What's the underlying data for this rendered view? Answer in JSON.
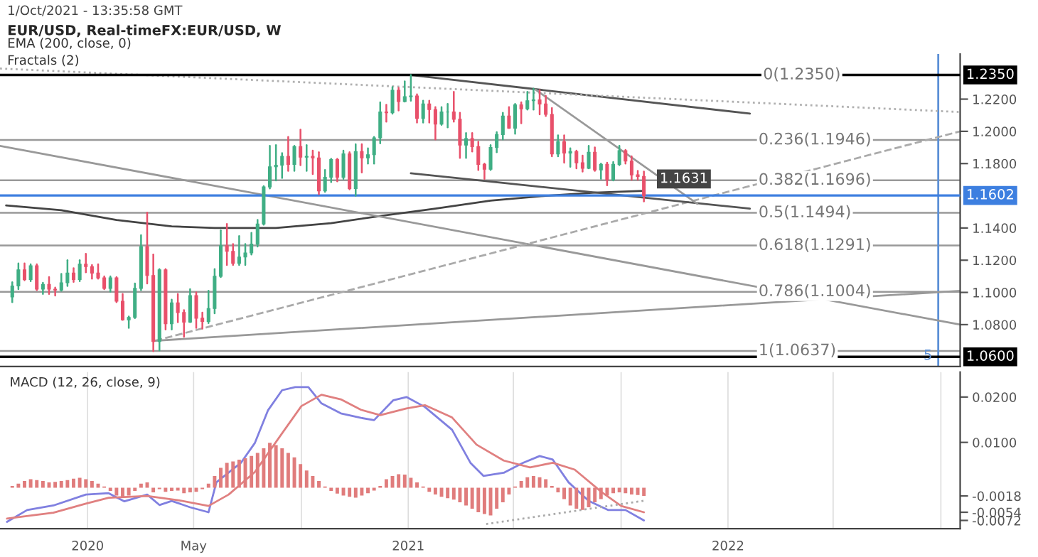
{
  "chart_data": [
    {
      "type": "candlestick",
      "title": "EUR/USD, Real-timeFX:EUR/USD, W",
      "annotations": [
        "1/Oct/2021 - 13:35:58 GMT",
        "EMA (200, close, 0)",
        "Fractals (2)",
        {
          "text": "0(1.2350)",
          "x": "2022-02-10",
          "y": 1.235
        }
      ],
      "x": [
        "2019-10-07",
        "2019-10-14",
        "2019-10-21",
        "2019-10-28",
        "2019-11-04",
        "2019-11-11",
        "2019-11-18",
        "2019-11-25",
        "2019-12-02",
        "2019-12-09",
        "2019-12-16",
        "2019-12-23",
        "2019-12-30",
        "2020-01-06",
        "2020-01-13",
        "2020-01-20",
        "2020-01-27",
        "2020-02-03",
        "2020-02-10",
        "2020-02-17",
        "2020-02-24",
        "2020-03-02",
        "2020-03-09",
        "2020-03-16",
        "2020-03-23",
        "2020-03-30",
        "2020-04-06",
        "2020-04-13",
        "2020-04-20",
        "2020-04-27",
        "2020-05-04",
        "2020-05-11",
        "2020-05-18",
        "2020-05-25",
        "2020-06-01",
        "2020-06-08",
        "2020-06-15",
        "2020-06-22",
        "2020-06-29",
        "2020-07-06",
        "2020-07-13",
        "2020-07-20",
        "2020-07-27",
        "2020-08-03",
        "2020-08-10",
        "2020-08-17",
        "2020-08-24",
        "2020-08-31",
        "2020-09-07",
        "2020-09-14",
        "2020-09-21",
        "2020-09-28",
        "2020-10-05",
        "2020-10-12",
        "2020-10-19",
        "2020-10-26",
        "2020-11-02",
        "2020-11-09",
        "2020-11-16",
        "2020-11-23",
        "2020-11-30",
        "2020-12-07",
        "2020-12-14",
        "2020-12-21",
        "2020-12-28",
        "2021-01-04",
        "2021-01-11",
        "2021-01-18",
        "2021-01-25",
        "2021-02-01",
        "2021-02-08",
        "2021-02-15",
        "2021-02-22",
        "2021-03-01",
        "2021-03-08",
        "2021-03-15",
        "2021-03-22",
        "2021-03-29",
        "2021-04-05",
        "2021-04-12",
        "2021-04-19",
        "2021-04-26",
        "2021-05-03",
        "2021-05-10",
        "2021-05-17",
        "2021-05-24",
        "2021-05-31",
        "2021-06-07",
        "2021-06-14",
        "2021-06-21",
        "2021-06-28",
        "2021-07-05",
        "2021-07-12",
        "2021-07-19",
        "2021-07-26",
        "2021-08-02",
        "2021-08-09",
        "2021-08-16",
        "2021-08-23",
        "2021-08-30",
        "2021-09-06",
        "2021-09-13",
        "2021-09-20",
        "2021-09-27"
      ],
      "ohlc": [
        [
          1.0972,
          1.1063,
          1.094,
          1.104
        ],
        [
          1.104,
          1.118,
          1.102,
          1.114
        ],
        [
          1.114,
          1.118,
          1.1075,
          1.108
        ],
        [
          1.108,
          1.1175,
          1.107,
          1.1165
        ],
        [
          1.1165,
          1.1175,
          1.1015,
          1.102
        ],
        [
          1.102,
          1.106,
          1.099,
          1.105
        ],
        [
          1.105,
          1.1095,
          1.099,
          1.102
        ],
        [
          1.102,
          1.103,
          1.098,
          1.1015
        ],
        [
          1.1015,
          1.1115,
          1.101,
          1.106
        ],
        [
          1.106,
          1.12,
          1.104,
          1.112
        ],
        [
          1.112,
          1.115,
          1.1065,
          1.108
        ],
        [
          1.108,
          1.12,
          1.107,
          1.1175
        ],
        [
          1.1175,
          1.124,
          1.1125,
          1.116
        ],
        [
          1.116,
          1.117,
          1.1085,
          1.112
        ],
        [
          1.112,
          1.1175,
          1.1085,
          1.109
        ],
        [
          1.109,
          1.11,
          1.102,
          1.1025
        ],
        [
          1.1025,
          1.11,
          1.1005,
          1.109
        ],
        [
          1.109,
          1.1095,
          1.094,
          1.0945
        ],
        [
          1.0945,
          1.099,
          1.083,
          1.083
        ],
        [
          1.083,
          1.085,
          1.078,
          1.0845
        ],
        [
          1.0845,
          1.1055,
          1.084,
          1.1025
        ],
        [
          1.1025,
          1.1355,
          1.1015,
          1.1285
        ],
        [
          1.1285,
          1.1495,
          1.1055,
          1.1105
        ],
        [
          1.1105,
          1.1235,
          1.0635,
          1.0695
        ],
        [
          1.0695,
          1.1145,
          1.064,
          1.114
        ],
        [
          1.114,
          1.1145,
          1.077,
          1.0805
        ],
        [
          1.0805,
          1.0955,
          1.077,
          1.0935
        ],
        [
          1.0935,
          1.099,
          1.0815,
          1.0875
        ],
        [
          1.0875,
          1.089,
          1.0725,
          1.0815
        ],
        [
          1.0815,
          1.102,
          1.0815,
          1.098
        ],
        [
          1.098,
          1.1,
          1.078,
          1.084
        ],
        [
          1.084,
          1.0875,
          1.0775,
          1.082
        ],
        [
          1.082,
          1.101,
          1.081,
          1.09
        ],
        [
          1.09,
          1.1145,
          1.087,
          1.11
        ],
        [
          1.11,
          1.1385,
          1.1095,
          1.129
        ],
        [
          1.129,
          1.1425,
          1.117,
          1.1255
        ],
        [
          1.1255,
          1.13,
          1.117,
          1.118
        ],
        [
          1.118,
          1.135,
          1.117,
          1.122
        ],
        [
          1.122,
          1.13,
          1.117,
          1.1245
        ],
        [
          1.1245,
          1.137,
          1.1235,
          1.13
        ],
        [
          1.13,
          1.145,
          1.1285,
          1.1425
        ],
        [
          1.1425,
          1.166,
          1.142,
          1.1655
        ],
        [
          1.1655,
          1.191,
          1.1645,
          1.178
        ],
        [
          1.178,
          1.1915,
          1.1695,
          1.179
        ],
        [
          1.179,
          1.1865,
          1.171,
          1.1845
        ],
        [
          1.1845,
          1.1965,
          1.1755,
          1.1795
        ],
        [
          1.1795,
          1.191,
          1.1755,
          1.1905
        ],
        [
          1.1905,
          1.201,
          1.179,
          1.184
        ],
        [
          1.184,
          1.1915,
          1.1755,
          1.1845
        ],
        [
          1.1845,
          1.188,
          1.1735,
          1.1835
        ],
        [
          1.1835,
          1.187,
          1.161,
          1.163
        ],
        [
          1.163,
          1.176,
          1.1625,
          1.1715
        ],
        [
          1.1715,
          1.183,
          1.1685,
          1.1825
        ],
        [
          1.1825,
          1.183,
          1.169,
          1.1715
        ],
        [
          1.1715,
          1.188,
          1.1705,
          1.186
        ],
        [
          1.186,
          1.187,
          1.164,
          1.1645
        ],
        [
          1.1645,
          1.192,
          1.16,
          1.1875
        ],
        [
          1.1875,
          1.192,
          1.1745,
          1.1835
        ],
        [
          1.1835,
          1.1895,
          1.18,
          1.1855
        ],
        [
          1.1855,
          1.1965,
          1.18,
          1.196
        ],
        [
          1.196,
          1.218,
          1.1925,
          1.212
        ],
        [
          1.212,
          1.2165,
          1.206,
          1.2115
        ],
        [
          1.2115,
          1.2275,
          1.211,
          1.2255
        ],
        [
          1.2255,
          1.227,
          1.213,
          1.2185
        ],
        [
          1.2185,
          1.231,
          1.2185,
          1.2215
        ],
        [
          1.2215,
          1.235,
          1.219,
          1.222
        ],
        [
          1.222,
          1.223,
          1.2055,
          1.208
        ],
        [
          1.208,
          1.219,
          1.2055,
          1.217
        ],
        [
          1.217,
          1.219,
          1.2055,
          1.2135
        ],
        [
          1.2135,
          1.215,
          1.195,
          1.2045
        ],
        [
          1.2045,
          1.215,
          1.204,
          1.212
        ],
        [
          1.212,
          1.217,
          1.2025,
          1.212
        ],
        [
          1.212,
          1.2245,
          1.206,
          1.2075
        ],
        [
          1.2075,
          1.2115,
          1.1835,
          1.1915
        ],
        [
          1.1915,
          1.199,
          1.1835,
          1.1955
        ],
        [
          1.1955,
          1.199,
          1.1875,
          1.1905
        ],
        [
          1.1905,
          1.1935,
          1.176,
          1.1795
        ],
        [
          1.1795,
          1.18,
          1.1705,
          1.1765
        ],
        [
          1.1765,
          1.1915,
          1.176,
          1.19
        ],
        [
          1.19,
          1.1995,
          1.187,
          1.198
        ],
        [
          1.198,
          1.2115,
          1.195,
          1.2095
        ],
        [
          1.2095,
          1.215,
          1.202,
          1.202
        ],
        [
          1.202,
          1.217,
          1.1985,
          1.2165
        ],
        [
          1.2165,
          1.218,
          1.205,
          1.214
        ],
        [
          1.214,
          1.2245,
          1.2135,
          1.219
        ],
        [
          1.219,
          1.2265,
          1.2135,
          1.2195
        ],
        [
          1.2195,
          1.2255,
          1.2105,
          1.217
        ],
        [
          1.217,
          1.222,
          1.2095,
          1.2105
        ],
        [
          1.2105,
          1.2145,
          1.1845,
          1.186
        ],
        [
          1.186,
          1.1975,
          1.1845,
          1.1935
        ],
        [
          1.1935,
          1.1975,
          1.1805,
          1.1865
        ],
        [
          1.1865,
          1.1895,
          1.178,
          1.1875
        ],
        [
          1.1875,
          1.188,
          1.177,
          1.1805
        ],
        [
          1.1805,
          1.185,
          1.175,
          1.177
        ],
        [
          1.177,
          1.191,
          1.177,
          1.187
        ],
        [
          1.187,
          1.19,
          1.1755,
          1.176
        ],
        [
          1.176,
          1.18,
          1.1705,
          1.1795
        ],
        [
          1.1795,
          1.1805,
          1.1665,
          1.17
        ],
        [
          1.17,
          1.181,
          1.1695,
          1.1795
        ],
        [
          1.1795,
          1.191,
          1.179,
          1.188
        ],
        [
          1.188,
          1.1885,
          1.18,
          1.1815
        ],
        [
          1.1815,
          1.1845,
          1.17,
          1.173
        ],
        [
          1.173,
          1.1755,
          1.17,
          1.172
        ],
        [
          1.172,
          1.175,
          1.1565,
          1.16
        ]
      ],
      "series": [
        {
          "type": "line",
          "color": "#444444",
          "x": [
            "2019-09-30",
            "2019-12-02",
            "2020-02-03",
            "2020-04-06",
            "2020-05-25",
            "2020-08-03",
            "2020-10-05",
            "2020-12-07",
            "2021-02-01",
            "2021-04-05",
            "2021-06-07",
            "2021-08-02",
            "2021-09-27"
          ],
          "values": [
            1.154,
            1.151,
            1.145,
            1.141,
            1.14,
            1.14,
            1.143,
            1.148,
            1.152,
            1.157,
            1.16,
            1.162,
            1.1631
          ],
          "value_labels": [
            null,
            null,
            null,
            null,
            null,
            null,
            null,
            null,
            null,
            null,
            null,
            null,
            "1.1631"
          ]
        },
        {
          "type": "line",
          "color": "#555555",
          "x": [
            "2021-01-04",
            "2022-01-26"
          ],
          "values": [
            1.235,
            1.211
          ]
        },
        {
          "type": "line",
          "color": "#b0b0b0",
          "line_style": "dotted",
          "x": [
            "2019-09-23",
            "2022-09-23"
          ],
          "values": [
            1.239,
            1.212
          ]
        },
        {
          "type": "line",
          "color": "#999999",
          "x": [
            "2019-09-23",
            "2022-09-23"
          ],
          "values": [
            1.191,
            1.08
          ]
        },
        {
          "type": "line",
          "color": "#aaaaaa",
          "line_style": "dashed",
          "x": [
            "2020-03-18",
            "2022-09-23"
          ],
          "values": [
            1.07,
            1.2
          ]
        },
        {
          "type": "line",
          "color": "#999999",
          "x": [
            "2020-03-18",
            "2022-09-23"
          ],
          "values": [
            1.07,
            1.101
          ]
        },
        {
          "type": "line",
          "color": "#555555",
          "x": [
            "2021-01-04",
            "2022-01-26"
          ],
          "values": [
            1.174,
            1.152
          ]
        },
        {
          "type": "line",
          "color": "#999999",
          "x": [
            "2021-05-26",
            "2021-11-27"
          ],
          "values": [
            1.226,
            1.155
          ]
        }
      ],
      "ref_lines": [
        {
          "axis": "y",
          "value": 1.1946,
          "label": "0.236(1.1946)"
        },
        {
          "axis": "y",
          "value": 1.1696,
          "label": "0.382(1.1696)"
        },
        {
          "axis": "y",
          "value": 1.1494,
          "label": "0.5(1.1494)"
        },
        {
          "axis": "y",
          "value": 1.1291,
          "label": "0.618(1.1291)"
        },
        {
          "axis": "y",
          "value": 1.1004,
          "label": "0.786(1.1004)"
        },
        {
          "axis": "y",
          "value": 1.0637,
          "label": "1(1.0637)"
        },
        {
          "axis": "y",
          "value": 1.235,
          "label": "1.2350",
          "color": "#000000"
        },
        {
          "axis": "y",
          "value": 1.06,
          "label": "1.0600",
          "color": "#000000"
        },
        {
          "axis": "y",
          "value": 1.1602,
          "label": "1.1602",
          "color": "#3d7fe0"
        },
        {
          "axis": "x",
          "value": "2022-08-29",
          "label": "5",
          "color": "#5b8fd6"
        }
      ],
      "xlim": [
        "2019-09-23",
        "2022-09-23"
      ],
      "ylim": [
        1.054,
        1.248
      ],
      "yticks": [
        {
          "value": 1.08,
          "label": "1.0800"
        },
        {
          "value": 1.1,
          "label": "1.1000"
        },
        {
          "value": 1.12,
          "label": "1.1200"
        },
        {
          "value": 1.14,
          "label": "1.1400"
        },
        {
          "value": 1.18,
          "label": "1.1800"
        },
        {
          "value": 1.2,
          "label": "1.2000"
        },
        {
          "value": 1.22,
          "label": "1.2200"
        }
      ],
      "tick_labels": "y",
      "grid": false,
      "legend": false
    },
    {
      "type": "bar",
      "color": "#e07c7c",
      "annotations": [
        "MACD (12, 26, close, 9)"
      ],
      "x": [
        "2019-10-07",
        "2019-10-14",
        "2019-10-21",
        "2019-10-28",
        "2019-11-04",
        "2019-11-11",
        "2019-11-18",
        "2019-11-25",
        "2019-12-02",
        "2019-12-09",
        "2019-12-16",
        "2019-12-23",
        "2019-12-30",
        "2020-01-06",
        "2020-01-13",
        "2020-01-20",
        "2020-01-27",
        "2020-02-03",
        "2020-02-10",
        "2020-02-17",
        "2020-02-24",
        "2020-03-02",
        "2020-03-09",
        "2020-03-16",
        "2020-03-23",
        "2020-03-30",
        "2020-04-06",
        "2020-04-13",
        "2020-04-20",
        "2020-04-27",
        "2020-05-04",
        "2020-05-11",
        "2020-05-18",
        "2020-05-25",
        "2020-06-01",
        "2020-06-08",
        "2020-06-15",
        "2020-06-22",
        "2020-06-29",
        "2020-07-06",
        "2020-07-13",
        "2020-07-20",
        "2020-07-27",
        "2020-08-03",
        "2020-08-10",
        "2020-08-17",
        "2020-08-24",
        "2020-08-31",
        "2020-09-07",
        "2020-09-14",
        "2020-09-21",
        "2020-09-28",
        "2020-10-05",
        "2020-10-12",
        "2020-10-19",
        "2020-10-26",
        "2020-11-02",
        "2020-11-09",
        "2020-11-16",
        "2020-11-23",
        "2020-11-30",
        "2020-12-07",
        "2020-12-14",
        "2020-12-21",
        "2020-12-28",
        "2021-01-04",
        "2021-01-11",
        "2021-01-18",
        "2021-01-25",
        "2021-02-01",
        "2021-02-08",
        "2021-02-15",
        "2021-02-22",
        "2021-03-01",
        "2021-03-08",
        "2021-03-15",
        "2021-03-22",
        "2021-03-29",
        "2021-04-05",
        "2021-04-12",
        "2021-04-19",
        "2021-04-26",
        "2021-05-03",
        "2021-05-10",
        "2021-05-17",
        "2021-05-24",
        "2021-05-31",
        "2021-06-07",
        "2021-06-14",
        "2021-06-21",
        "2021-06-28",
        "2021-07-05",
        "2021-07-12",
        "2021-07-19",
        "2021-07-26",
        "2021-08-02",
        "2021-08-09",
        "2021-08-16",
        "2021-08-23",
        "2021-08-30",
        "2021-09-06",
        "2021-09-13",
        "2021-09-20",
        "2021-09-27"
      ],
      "values": [
        0.0004,
        0.0009,
        0.0015,
        0.0019,
        0.0017,
        0.0015,
        0.0012,
        0.0013,
        0.0015,
        0.0017,
        0.002,
        0.0022,
        0.0019,
        0.0015,
        0.0009,
        0.0003,
        -0.0007,
        -0.0017,
        -0.0022,
        -0.0017,
        -0.0007,
        0.0009,
        0.0012,
        -0.001,
        -0.0003,
        -0.0009,
        -0.0007,
        -0.0006,
        -0.0012,
        -0.001,
        -0.0009,
        -0.0003,
        0.0009,
        0.0026,
        0.0044,
        0.0055,
        0.0058,
        0.0062,
        0.0065,
        0.007,
        0.0077,
        0.0087,
        0.0099,
        0.0094,
        0.0087,
        0.0077,
        0.0067,
        0.0052,
        0.0038,
        0.0026,
        0.0015,
        0.0003,
        -0.0007,
        -0.0013,
        -0.0017,
        -0.002,
        -0.0022,
        -0.0017,
        -0.0012,
        -0.0006,
        0.0004,
        0.0019,
        0.0026,
        0.003,
        0.0029,
        0.0022,
        0.0012,
        0.0003,
        -0.0009,
        -0.0015,
        -0.002,
        -0.0023,
        -0.0026,
        -0.0032,
        -0.0039,
        -0.0046,
        -0.0054,
        -0.0058,
        -0.0061,
        -0.0046,
        -0.0032,
        -0.0015,
        0.0003,
        0.0015,
        0.0023,
        0.0026,
        0.0023,
        0.0019,
        0.0004,
        -0.001,
        -0.0025,
        -0.0039,
        -0.0046,
        -0.0049,
        -0.0043,
        -0.0032,
        -0.0025,
        -0.0017,
        -0.0012,
        -0.001,
        -0.0012,
        -0.0015,
        -0.0016,
        -0.0018
      ],
      "series": [
        {
          "type": "line",
          "color": "#8080e0",
          "x": [
            "2019-10-01",
            "2019-10-24",
            "2019-11-23",
            "2019-12-30",
            "2020-01-25",
            "2020-02-12",
            "2020-03-09",
            "2020-03-23",
            "2020-04-06",
            "2020-04-27",
            "2020-05-18",
            "2020-05-27",
            "2020-06-24",
            "2020-07-10",
            "2020-07-25",
            "2020-08-10",
            "2020-08-25",
            "2020-09-09",
            "2020-09-24",
            "2020-10-16",
            "2020-11-08",
            "2020-11-23",
            "2020-12-15",
            "2020-12-30",
            "2021-01-20",
            "2021-02-20",
            "2021-03-13",
            "2021-03-28",
            "2021-04-20",
            "2021-05-12",
            "2021-05-31",
            "2021-06-15",
            "2021-07-03",
            "2021-07-26",
            "2021-08-17",
            "2021-09-06",
            "2021-09-27"
          ],
          "values": [
            -0.0075,
            -0.0049,
            -0.0039,
            -0.0015,
            -0.0012,
            -0.003,
            -0.0015,
            -0.0038,
            -0.0029,
            -0.0043,
            -0.0054,
            0.0012,
            0.0055,
            0.0099,
            0.0171,
            0.0215,
            0.0222,
            0.0222,
            0.0186,
            0.0164,
            0.0154,
            0.0149,
            0.0193,
            0.02,
            0.0178,
            0.0128,
            0.0055,
            0.0026,
            0.0033,
            0.0055,
            0.007,
            0.0062,
            0.0012,
            -0.0029,
            -0.0049,
            -0.0049,
            -0.0072
          ]
        },
        {
          "type": "line",
          "color": "#e08080",
          "x": [
            "2019-10-01",
            "2019-11-23",
            "2019-12-30",
            "2020-01-25",
            "2020-03-09",
            "2020-04-15",
            "2020-05-18",
            "2020-06-10",
            "2020-07-10",
            "2020-08-10",
            "2020-09-01",
            "2020-09-24",
            "2020-10-16",
            "2020-11-08",
            "2020-11-30",
            "2020-12-30",
            "2021-01-20",
            "2021-02-20",
            "2021-03-20",
            "2021-04-20",
            "2021-05-20",
            "2021-06-15",
            "2021-07-10",
            "2021-08-10",
            "2021-09-01",
            "2021-09-27"
          ],
          "values": [
            -0.0068,
            -0.0055,
            -0.0035,
            -0.0022,
            -0.0018,
            -0.0028,
            -0.004,
            -0.0015,
            0.0035,
            0.012,
            0.018,
            0.0205,
            0.0195,
            0.0172,
            0.016,
            0.0175,
            0.0182,
            0.0155,
            0.0095,
            0.006,
            0.0045,
            0.0055,
            0.004,
            -0.001,
            -0.004,
            -0.0054
          ]
        },
        {
          "type": "line",
          "color": "#aaaaaa",
          "line_style": "dotted",
          "x": [
            "2021-03-31",
            "2021-09-29"
          ],
          "values": [
            -0.008,
            -0.0028
          ]
        }
      ],
      "xlim": [
        "2019-09-23",
        "2022-09-23"
      ],
      "ylim": [
        -0.009,
        0.0255
      ],
      "xticks": [
        {
          "value": "2020-01-01",
          "label": "2020"
        },
        {
          "value": "2020-05-01",
          "label": "May"
        },
        {
          "value": "2020-09-01",
          "label": null
        },
        {
          "value": "2021-01-01",
          "label": "2021"
        },
        {
          "value": "2021-05-01",
          "label": null
        },
        {
          "value": "2021-09-01",
          "label": null
        },
        {
          "value": "2022-01-01",
          "label": "2022"
        },
        {
          "value": "2022-05-01",
          "label": null
        },
        {
          "value": "2022-09-01",
          "label": null
        }
      ],
      "yticks": [
        {
          "value": -0.0072,
          "label": "-0.0072"
        },
        {
          "value": -0.0054,
          "label": "-0.0054"
        },
        {
          "value": -0.0018,
          "label": "-0.0018"
        },
        {
          "value": 0.01,
          "label": "0.0100"
        },
        {
          "value": 0.02,
          "label": "0.0200"
        }
      ],
      "grid": "x",
      "legend": false
    }
  ]
}
